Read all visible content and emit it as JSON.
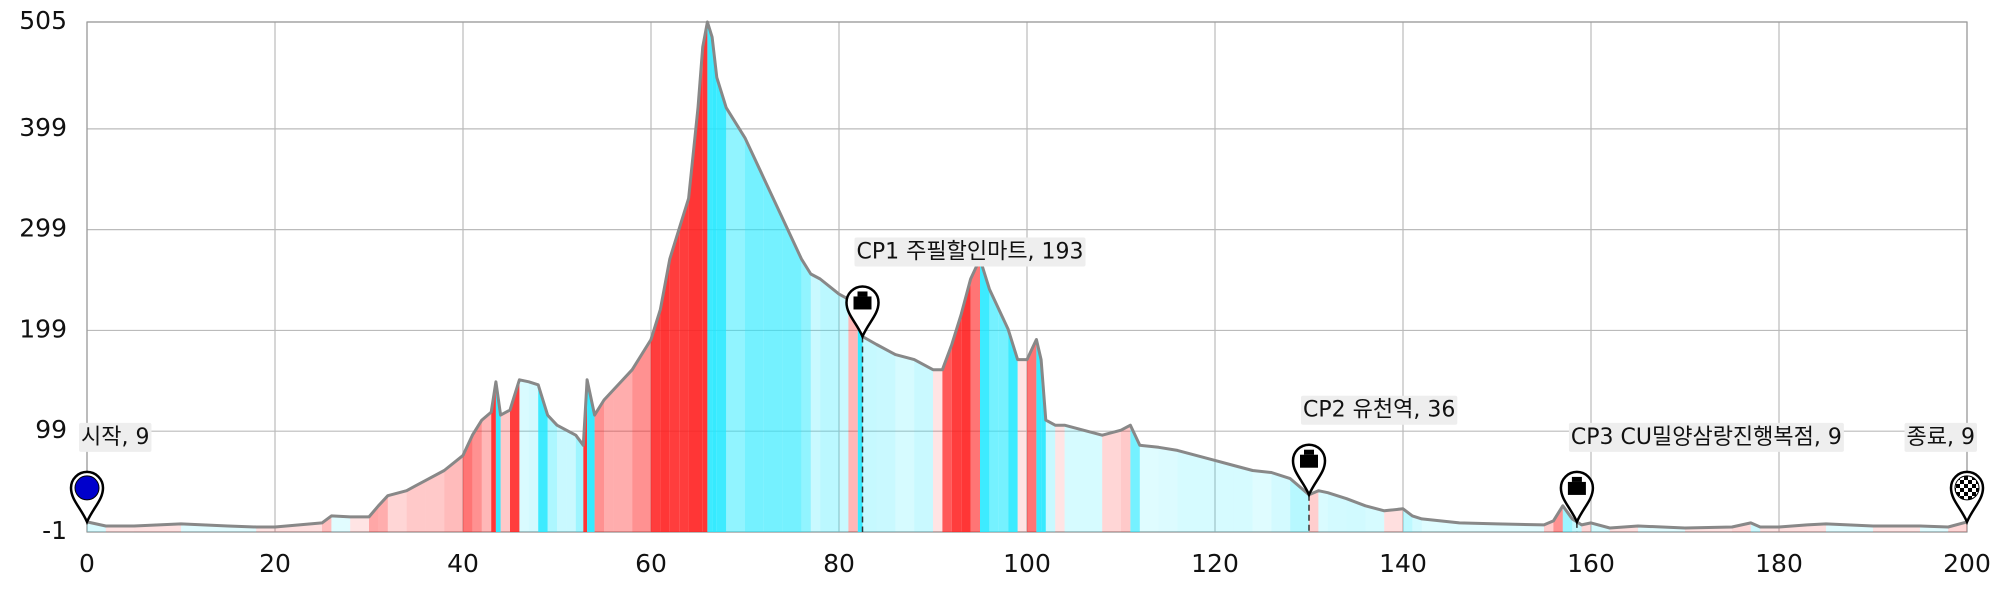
{
  "chart_data": {
    "type": "line",
    "x": [
      0,
      2,
      5,
      10,
      15,
      18,
      20,
      25,
      26,
      28,
      30,
      31,
      32,
      34,
      35,
      36,
      38,
      40,
      41,
      42,
      43,
      43.5,
      44,
      45,
      46,
      47,
      48,
      49,
      50,
      51,
      52,
      52.8,
      53.2,
      54,
      55,
      56,
      58,
      60,
      61,
      62,
      63,
      64,
      65,
      65.5,
      66,
      66.5,
      67,
      68,
      70,
      72,
      74,
      76,
      77,
      78,
      80,
      81,
      82,
      82.5,
      84,
      86,
      88,
      90,
      91,
      92,
      93,
      94,
      95,
      96,
      97,
      98,
      99,
      100,
      101,
      101.5,
      102,
      103,
      104,
      106,
      108,
      110,
      111,
      112,
      114,
      116,
      118,
      120,
      122,
      124,
      126,
      128,
      130,
      131,
      132,
      134,
      136,
      138,
      140,
      141,
      142,
      144,
      146,
      150,
      155,
      156,
      157,
      158,
      159,
      160,
      162,
      165,
      170,
      175,
      177,
      178,
      180,
      183,
      185,
      190,
      195,
      198,
      200
    ],
    "values": [
      9,
      5,
      5,
      7,
      5,
      4,
      4,
      8,
      15,
      14,
      14,
      25,
      35,
      40,
      45,
      50,
      60,
      75,
      95,
      110,
      118,
      148,
      115,
      120,
      150,
      148,
      145,
      115,
      105,
      100,
      95,
      85,
      150,
      115,
      130,
      140,
      160,
      190,
      220,
      270,
      300,
      330,
      420,
      480,
      505,
      490,
      450,
      420,
      390,
      350,
      310,
      270,
      255,
      250,
      235,
      230,
      238,
      193,
      185,
      175,
      170,
      160,
      160,
      185,
      215,
      250,
      270,
      240,
      220,
      200,
      170,
      170,
      190,
      170,
      110,
      105,
      105,
      100,
      95,
      100,
      105,
      85,
      83,
      80,
      75,
      70,
      65,
      60,
      58,
      52,
      36,
      40,
      38,
      32,
      25,
      20,
      22,
      15,
      12,
      10,
      8,
      7,
      6,
      10,
      25,
      12,
      6,
      8,
      3,
      5,
      3,
      4,
      8,
      4,
      4,
      6,
      7,
      5,
      5,
      4,
      9
    ],
    "color": "#888888",
    "xlim": [
      0,
      200
    ],
    "xticks": [
      0,
      20,
      40,
      60,
      80,
      100,
      120,
      140,
      160,
      180,
      200
    ],
    "ylim": [
      -1,
      505
    ],
    "yticks": [
      -1,
      99,
      199,
      299,
      399,
      505
    ],
    "grid": true,
    "markers": [
      {
        "label": "시작, 9",
        "x": 0,
        "value": 9
      },
      {
        "label": "CP1 주필할인마트, 193",
        "x": 82.5,
        "value": 193
      },
      {
        "label": "CP2 유천역, 36",
        "x": 130,
        "value": 36
      },
      {
        "label": "CP3 CU밀양삼랑진행복점, 9",
        "x": 158.5,
        "value": 9
      },
      {
        "label": "종료, 9",
        "x": 200,
        "value": 9
      }
    ]
  }
}
